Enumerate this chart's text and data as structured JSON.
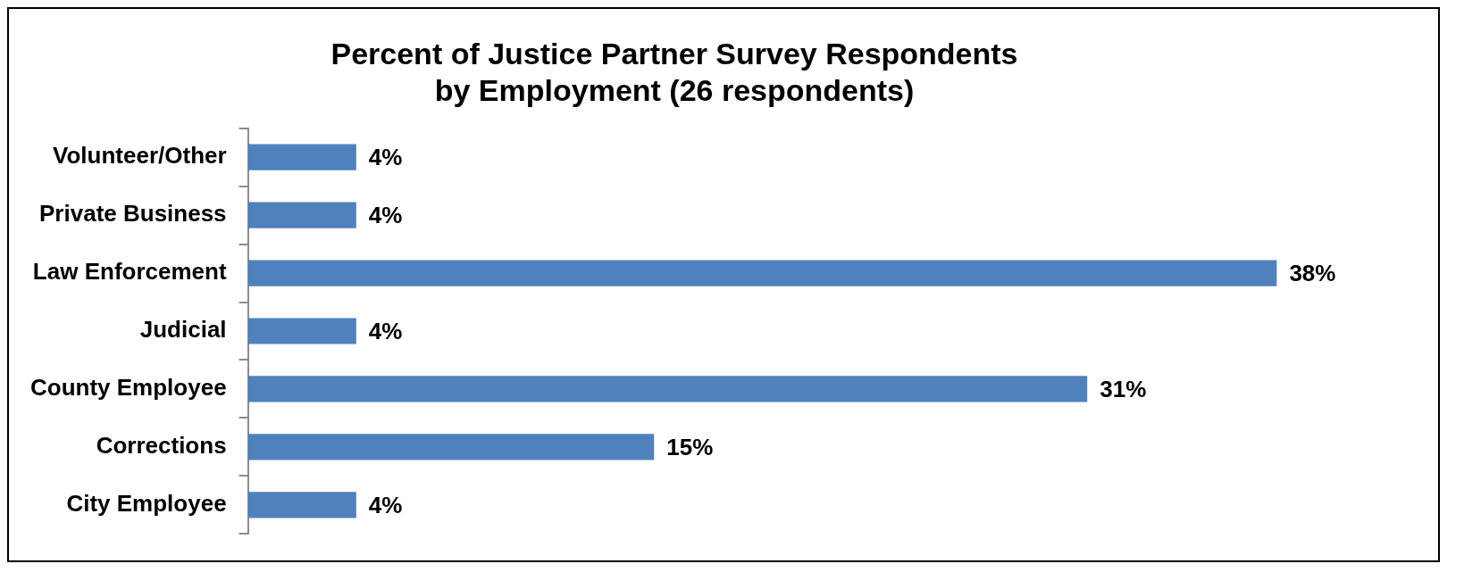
{
  "chart_data": {
    "type": "bar",
    "orientation": "horizontal",
    "title": "Percent of Justice Partner Survey Respondents\nby Employment (26 respondents)",
    "categories": [
      "Volunteer/Other",
      "Private Business",
      "Law Enforcement",
      "Judicial",
      "County Employee",
      "Corrections",
      "City Employee"
    ],
    "values": [
      4,
      4,
      38,
      4,
      31,
      15,
      4
    ],
    "value_labels": [
      "4%",
      "4%",
      "38%",
      "4%",
      "31%",
      "15%",
      "4%"
    ],
    "color": "#4f81bd",
    "legend": false
  }
}
